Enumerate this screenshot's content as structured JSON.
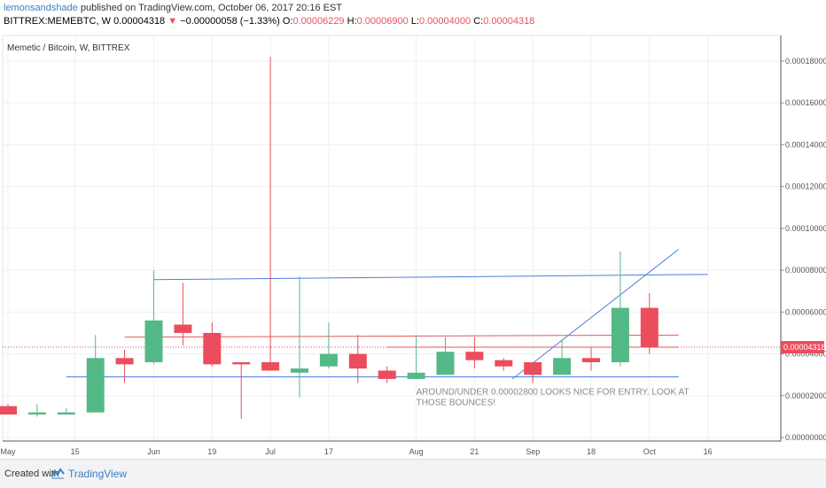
{
  "header": {
    "author": "lemonsandshade",
    "published_text": "published on TradingView.com, October 06, 2017 20:16 EST",
    "symbol": "BITTREX:MEMEBTC, W",
    "last": "0.00004318",
    "down_arrow": "▼",
    "change": "−0.00000058 (−1.33%)",
    "o_label": "O:",
    "o_value": "0.00006229",
    "h_label": "H:",
    "h_value": "0.00006900",
    "l_label": "L:",
    "l_value": "0.00004000",
    "c_label": "C:",
    "c_value": "0.00004318"
  },
  "footer": {
    "created_with": "Created with",
    "brand": "TradingView"
  },
  "colors": {
    "up": "#53b987",
    "down": "#eb4d5c",
    "trendline": "#4a7fdc",
    "hline_red": "#e35a5a",
    "price_tag": "#eb4d5c",
    "grid": "#eef0f3"
  },
  "chart_data": {
    "type": "candlestick",
    "title": "Memetic / Bitcoin, W, BITTREX",
    "ylim": [
      0,
      0.00019
    ],
    "y_ticks": [
      "0.00018000",
      "0.00016000",
      "0.00014000",
      "0.00012000",
      "0.00010000",
      "0.00008000",
      "0.00006000",
      "0.00004000",
      "0.00002000",
      "0.00000000"
    ],
    "x_ticks": [
      {
        "w": 0,
        "label": "May"
      },
      {
        "w": 2.3,
        "label": "15"
      },
      {
        "w": 5,
        "label": "Jun"
      },
      {
        "w": 7,
        "label": "19"
      },
      {
        "w": 9,
        "label": "Jul"
      },
      {
        "w": 11,
        "label": "17"
      },
      {
        "w": 14,
        "label": "Aug"
      },
      {
        "w": 16,
        "label": "21"
      },
      {
        "w": 18,
        "label": "Sep"
      },
      {
        "w": 20,
        "label": "18"
      },
      {
        "w": 22,
        "label": "Oct"
      },
      {
        "w": 24,
        "label": "16"
      }
    ],
    "candles": [
      {
        "w": 0,
        "o": 1.5e-05,
        "h": 1.6e-05,
        "l": 1.1e-05,
        "c": 1.1e-05
      },
      {
        "w": 1,
        "o": 1.1e-05,
        "h": 1.6e-05,
        "l": 1e-05,
        "c": 1.2e-05
      },
      {
        "w": 2,
        "o": 1.1e-05,
        "h": 1.4e-05,
        "l": 1.1e-05,
        "c": 1.2e-05
      },
      {
        "w": 3,
        "o": 1.2e-05,
        "h": 4.9e-05,
        "l": 1.2e-05,
        "c": 3.8e-05
      },
      {
        "w": 4,
        "o": 3.8e-05,
        "h": 4.2e-05,
        "l": 2.6e-05,
        "c": 3.5e-05
      },
      {
        "w": 5,
        "o": 3.6e-05,
        "h": 8e-05,
        "l": 3.5e-05,
        "c": 5.6e-05
      },
      {
        "w": 6,
        "o": 5.4e-05,
        "h": 7.4e-05,
        "l": 4.4e-05,
        "c": 5e-05
      },
      {
        "w": 7,
        "o": 5e-05,
        "h": 5.5e-05,
        "l": 3.4e-05,
        "c": 3.5e-05
      },
      {
        "w": 8,
        "o": 3.6e-05,
        "h": 3.6e-05,
        "l": 9e-06,
        "c": 3.5e-05
      },
      {
        "w": 9,
        "o": 3.6e-05,
        "h": 0.000182,
        "l": 3.2e-05,
        "c": 3.2e-05
      },
      {
        "w": 10,
        "o": 3.1e-05,
        "h": 7.7e-05,
        "l": 1.9e-05,
        "c": 3.3e-05
      },
      {
        "w": 11,
        "o": 3.4e-05,
        "h": 5.5e-05,
        "l": 3.3e-05,
        "c": 4e-05
      },
      {
        "w": 12,
        "o": 4e-05,
        "h": 4.9e-05,
        "l": 2.6e-05,
        "c": 3.3e-05
      },
      {
        "w": 13,
        "o": 3.2e-05,
        "h": 3.4e-05,
        "l": 2.6e-05,
        "c": 2.8e-05
      },
      {
        "w": 14,
        "o": 2.8e-05,
        "h": 4.9e-05,
        "l": 2.8e-05,
        "c": 3.1e-05
      },
      {
        "w": 15,
        "o": 3e-05,
        "h": 4.8e-05,
        "l": 3e-05,
        "c": 4.1e-05
      },
      {
        "w": 16,
        "o": 4.1e-05,
        "h": 4.8e-05,
        "l": 3.3e-05,
        "c": 3.7e-05
      },
      {
        "w": 17,
        "o": 3.7e-05,
        "h": 3.8e-05,
        "l": 3.2e-05,
        "c": 3.4e-05
      },
      {
        "w": 18,
        "o": 3.6e-05,
        "h": 3.6e-05,
        "l": 2.6e-05,
        "c": 3e-05
      },
      {
        "w": 19,
        "o": 3e-05,
        "h": 4.7e-05,
        "l": 3e-05,
        "c": 3.8e-05
      },
      {
        "w": 20,
        "o": 3.8e-05,
        "h": 4.3e-05,
        "l": 3.2e-05,
        "c": 3.6e-05
      },
      {
        "w": 21,
        "o": 3.6e-05,
        "h": 8.9e-05,
        "l": 3.4e-05,
        "c": 6.2e-05
      },
      {
        "w": 22,
        "o": 6.2e-05,
        "h": 6.9e-05,
        "l": 4e-05,
        "c": 4.32e-05
      }
    ],
    "trendlines": [
      {
        "w1": 5,
        "p1": 7.55e-05,
        "w2": 24,
        "p2": 7.8e-05,
        "color": "#4a7fdc"
      },
      {
        "w1": 2,
        "p1": 2.9e-05,
        "w2": 23,
        "p2": 2.9e-05,
        "color": "#4a7fdc"
      },
      {
        "w1": 17.3,
        "p1": 2.8e-05,
        "w2": 23,
        "p2": 9e-05,
        "color": "#4a7fdc"
      },
      {
        "w1": 4,
        "p1": 4.8e-05,
        "w2": 23,
        "p2": 4.9e-05,
        "color": "#e35a5a"
      },
      {
        "w1": 13,
        "p1": 4.32e-05,
        "w2": 23,
        "p2": 4.32e-05,
        "color": "#e35a5a"
      }
    ],
    "last_price": 4.318e-05,
    "last_price_label": "0.00004318",
    "annotation": "AROUND/UNDER 0.00002800 LOOKS NICE FOR ENTRY. LOOK AT THOSE BOUNCES!",
    "annotation_pos": {
      "w": 14,
      "p": 2.05e-05
    }
  }
}
